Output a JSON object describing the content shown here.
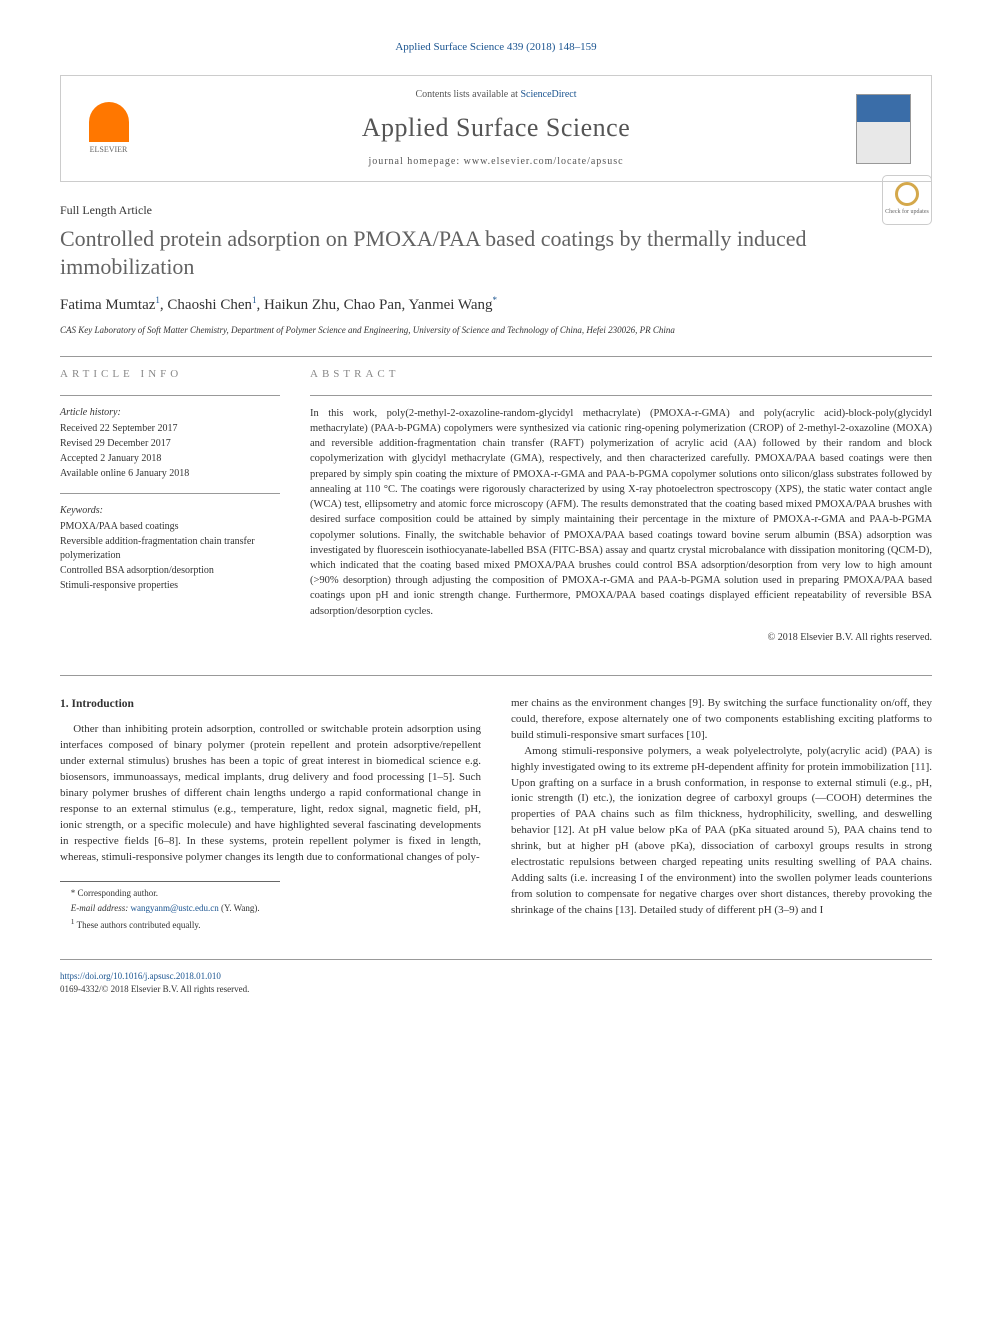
{
  "citation": "Applied Surface Science 439 (2018) 148–159",
  "journal_box": {
    "contents_prefix": "Contents lists available at ",
    "contents_link": "ScienceDirect",
    "journal_name": "Applied Surface Science",
    "homepage_prefix": "journal homepage: ",
    "homepage_url": "www.elsevier.com/locate/apsusc",
    "publisher": "ELSEVIER"
  },
  "article_type": "Full Length Article",
  "title": "Controlled protein adsorption on PMOXA/PAA based coatings by thermally induced immobilization",
  "updates_badge": "Check for updates",
  "authors": [
    {
      "name": "Fatima Mumtaz",
      "sup": "1"
    },
    {
      "name": "Chaoshi Chen",
      "sup": "1"
    },
    {
      "name": "Haikun Zhu",
      "sup": ""
    },
    {
      "name": "Chao Pan",
      "sup": ""
    },
    {
      "name": "Yanmei Wang",
      "sup": "*"
    }
  ],
  "affiliation": "CAS Key Laboratory of Soft Matter Chemistry, Department of Polymer Science and Engineering, University of Science and Technology of China, Hefei 230026, PR China",
  "info": {
    "heading": "ARTICLE INFO",
    "history_label": "Article history:",
    "history": [
      "Received 22 September 2017",
      "Revised 29 December 2017",
      "Accepted 2 January 2018",
      "Available online 6 January 2018"
    ],
    "keywords_label": "Keywords:",
    "keywords": [
      "PMOXA/PAA based coatings",
      "Reversible addition-fragmentation chain transfer polymerization",
      "Controlled BSA adsorption/desorption",
      "Stimuli-responsive properties"
    ]
  },
  "abstract": {
    "heading": "ABSTRACT",
    "text": "In this work, poly(2-methyl-2-oxazoline-random-glycidyl methacrylate) (PMOXA-r-GMA) and poly(acrylic acid)-block-poly(glycidyl methacrylate) (PAA-b-PGMA) copolymers were synthesized via cationic ring-opening polymerization (CROP) of 2-methyl-2-oxazoline (MOXA) and reversible addition-fragmentation chain transfer (RAFT) polymerization of acrylic acid (AA) followed by their random and block copolymerization with glycidyl methacrylate (GMA), respectively, and then characterized carefully. PMOXA/PAA based coatings were then prepared by simply spin coating the mixture of PMOXA-r-GMA and PAA-b-PGMA copolymer solutions onto silicon/glass substrates followed by annealing at 110 °C. The coatings were rigorously characterized by using X-ray photoelectron spectroscopy (XPS), the static water contact angle (WCA) test, ellipsometry and atomic force microscopy (AFM). The results demonstrated that the coating based mixed PMOXA/PAA brushes with desired surface composition could be attained by simply maintaining their percentage in the mixture of PMOXA-r-GMA and PAA-b-PGMA copolymer solutions. Finally, the switchable behavior of PMOXA/PAA based coatings toward bovine serum albumin (BSA) adsorption was investigated by fluorescein isothiocyanate-labelled BSA (FITC-BSA) assay and quartz crystal microbalance with dissipation monitoring (QCM-D), which indicated that the coating based mixed PMOXA/PAA brushes could control BSA adsorption/desorption from very low to high amount (>90% desorption) through adjusting the composition of PMOXA-r-GMA and PAA-b-PGMA solution used in preparing PMOXA/PAA based coatings upon pH and ionic strength change. Furthermore, PMOXA/PAA based coatings displayed efficient repeatability of reversible BSA adsorption/desorption cycles.",
    "copyright": "© 2018 Elsevier B.V. All rights reserved."
  },
  "body": {
    "section_heading": "1. Introduction",
    "col1_p1": "Other than inhibiting protein adsorption, controlled or switchable protein adsorption using interfaces composed of binary polymer (protein repellent and protein adsorptive/repellent under external stimulus) brushes has been a topic of great interest in biomedical science e.g. biosensors, immunoassays, medical implants, drug delivery and food processing [1–5]. Such binary polymer brushes of different chain lengths undergo a rapid conformational change in response to an external stimulus (e.g., temperature, light, redox signal, magnetic field, pH, ionic strength, or a specific molecule) and have highlighted several fascinating developments in respective fields [6–8]. In these systems, protein repellent polymer is fixed in length, whereas, stimuli-responsive polymer changes its length due to conformational changes of poly-",
    "col2_p1": "mer chains as the environment changes [9]. By switching the surface functionality on/off, they could, therefore, expose alternately one of two components establishing exciting platforms to build stimuli-responsive smart surfaces [10].",
    "col2_p2": "Among stimuli-responsive polymers, a weak polyelectrolyte, poly(acrylic acid) (PAA) is highly investigated owing to its extreme pH-dependent affinity for protein immobilization [11]. Upon grafting on a surface in a brush conformation, in response to external stimuli (e.g., pH, ionic strength (I) etc.), the ionization degree of carboxyl groups (—COOH) determines the properties of PAA chains such as film thickness, hydrophilicity, swelling, and deswelling behavior [12]. At pH value below pKa of PAA (pKa situated around 5), PAA chains tend to shrink, but at higher pH (above pKa), dissociation of carboxyl groups results in strong electrostatic repulsions between charged repeating units resulting swelling of PAA chains. Adding salts (i.e. increasing I of the environment) into the swollen polymer leads counterions from solution to compensate for negative charges over short distances, thereby provoking the shrinkage of the chains [13]. Detailed study of different pH (3–9) and I"
  },
  "footnotes": {
    "corr": "* Corresponding author.",
    "email_label": "E-mail address: ",
    "email": "wangyanm@ustc.edu.cn",
    "email_person": " (Y. Wang).",
    "contrib": "1 These authors contributed equally."
  },
  "footer": {
    "doi": "https://doi.org/10.1016/j.apsusc.2018.01.010",
    "issn_line": "0169-4332/© 2018 Elsevier B.V. All rights reserved."
  },
  "colors": {
    "link": "#1a5490",
    "text": "#333333",
    "heading_gray": "#626262",
    "elsevier_orange": "#ff7700",
    "badge_gold": "#d4a84b"
  }
}
